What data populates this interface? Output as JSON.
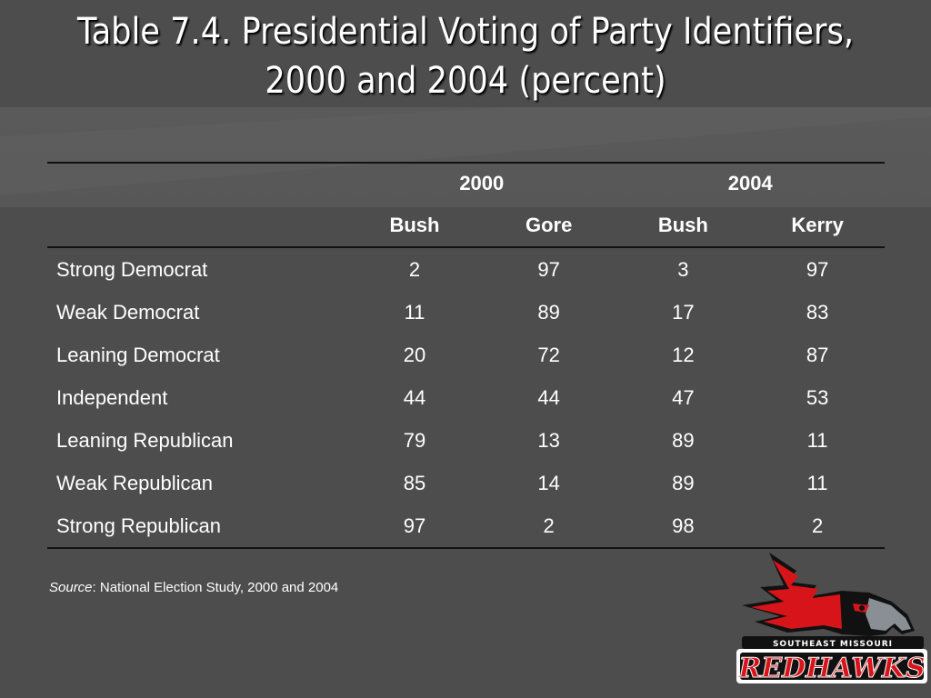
{
  "title_line1": "Table 7.4. Presidential Voting of Party Identifiers,",
  "title_line2": "2000 and 2004 (percent)",
  "table": {
    "years": [
      "2000",
      "2004"
    ],
    "columns": [
      "Bush",
      "Gore",
      "Bush",
      "Kerry"
    ],
    "rows": [
      {
        "label": "Strong Democrat",
        "values": [
          "2",
          "97",
          "3",
          "97"
        ]
      },
      {
        "label": "Weak Democrat",
        "values": [
          "11",
          "89",
          "17",
          "83"
        ]
      },
      {
        "label": "Leaning Democrat",
        "values": [
          "20",
          "72",
          "12",
          "87"
        ]
      },
      {
        "label": "Independent",
        "values": [
          "44",
          "44",
          "47",
          "53"
        ]
      },
      {
        "label": "Leaning Republican",
        "values": [
          "79",
          "13",
          "89",
          "11"
        ]
      },
      {
        "label": "Weak Republican",
        "values": [
          "85",
          "14",
          "89",
          "11"
        ]
      },
      {
        "label": "Strong Republican",
        "values": [
          "97",
          "2",
          "98",
          "2"
        ]
      }
    ]
  },
  "source": {
    "label": "Source",
    "text": ": National Election Study, 2000 and 2004"
  },
  "logo": {
    "line1": "SOUTHEAST MISSOURI",
    "line2": "REDHAWKS",
    "colors": {
      "red": "#d7141a",
      "black": "#111111",
      "gray": "#8a8f96"
    }
  }
}
